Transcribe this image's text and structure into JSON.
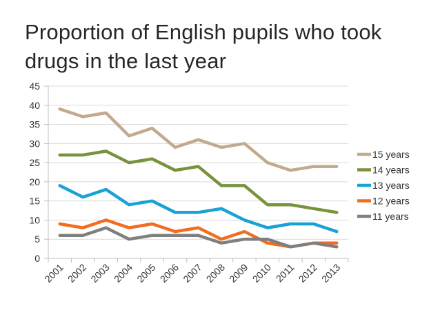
{
  "chart_data": {
    "type": "line",
    "title": "Proportion of English pupils who took drugs in the last year",
    "xlabel": "",
    "ylabel": "",
    "x": [
      "2001",
      "2002",
      "2003",
      "2004",
      "2005",
      "2006",
      "2007",
      "2008",
      "2009",
      "2010",
      "2011",
      "2012",
      "2013"
    ],
    "ylim": [
      0,
      45
    ],
    "yticks": [
      0,
      5,
      10,
      15,
      20,
      25,
      30,
      35,
      40,
      45
    ],
    "grid": true,
    "legend_position": "right",
    "series": [
      {
        "name": "15 years",
        "color": "#c3a98e",
        "values": [
          39,
          37,
          38,
          32,
          34,
          29,
          31,
          29,
          30,
          25,
          23,
          24,
          24
        ]
      },
      {
        "name": "14 years",
        "color": "#77933c",
        "values": [
          27,
          27,
          28,
          25,
          26,
          23,
          24,
          19,
          19,
          14,
          14,
          13,
          12
        ]
      },
      {
        "name": "13 years",
        "color": "#1aa1d6",
        "values": [
          19,
          16,
          18,
          14,
          15,
          12,
          12,
          13,
          10,
          8,
          9,
          9,
          7
        ]
      },
      {
        "name": "12 years",
        "color": "#f26d21",
        "values": [
          9,
          8,
          10,
          8,
          9,
          7,
          8,
          5,
          7,
          4,
          3,
          4,
          4
        ]
      },
      {
        "name": "11 years",
        "color": "#7f7f7f",
        "values": [
          6,
          6,
          8,
          5,
          6,
          6,
          6,
          4,
          5,
          5,
          3,
          4,
          3
        ]
      }
    ]
  }
}
